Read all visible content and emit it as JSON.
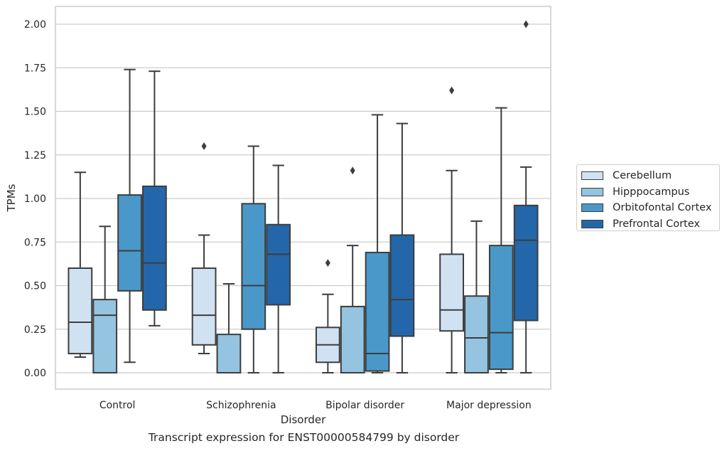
{
  "chart_data": {
    "type": "box",
    "caption": "Transcript expression for ENST00000584799 by disorder",
    "xlabel": "Disorder",
    "ylabel": "TPMs",
    "categories": [
      "Control",
      "Schizophrenia",
      "Bipolar disorder",
      "Major depression"
    ],
    "ylim": [
      -0.1,
      2.1
    ],
    "yticks": [
      "0.00",
      "0.25",
      "0.50",
      "0.75",
      "1.00",
      "1.25",
      "1.50",
      "1.75",
      "2.00"
    ],
    "grid": "horizontal",
    "legend_position": "right",
    "series": [
      {
        "name": "Cerebellum",
        "color": "#d0e1f2",
        "boxes": [
          {
            "whisker_low": 0.09,
            "q1": 0.11,
            "median": 0.29,
            "q3": 0.6,
            "whisker_high": 1.15,
            "outliers": []
          },
          {
            "whisker_low": 0.11,
            "q1": 0.16,
            "median": 0.33,
            "q3": 0.6,
            "whisker_high": 0.79,
            "outliers": [
              1.3
            ]
          },
          {
            "whisker_low": 0.0,
            "q1": 0.06,
            "median": 0.16,
            "q3": 0.26,
            "whisker_high": 0.45,
            "outliers": [
              0.63
            ]
          },
          {
            "whisker_low": 0.0,
            "q1": 0.24,
            "median": 0.36,
            "q3": 0.68,
            "whisker_high": 1.16,
            "outliers": [
              1.62
            ]
          }
        ]
      },
      {
        "name": "Hipppocampus",
        "color": "#94c4df",
        "boxes": [
          {
            "whisker_low": 0.0,
            "q1": 0.0,
            "median": 0.33,
            "q3": 0.42,
            "whisker_high": 0.84,
            "outliers": []
          },
          {
            "whisker_low": 0.0,
            "q1": 0.0,
            "median": 0.0,
            "q3": 0.22,
            "whisker_high": 0.51,
            "outliers": []
          },
          {
            "whisker_low": 0.0,
            "q1": 0.0,
            "median": 0.0,
            "q3": 0.38,
            "whisker_high": 0.73,
            "outliers": [
              1.16
            ]
          },
          {
            "whisker_low": 0.0,
            "q1": 0.0,
            "median": 0.2,
            "q3": 0.44,
            "whisker_high": 0.87,
            "outliers": []
          }
        ]
      },
      {
        "name": "Orbitofontal Cortex",
        "color": "#4a98c9",
        "boxes": [
          {
            "whisker_low": 0.06,
            "q1": 0.47,
            "median": 0.7,
            "q3": 1.02,
            "whisker_high": 1.74,
            "outliers": []
          },
          {
            "whisker_low": 0.0,
            "q1": 0.25,
            "median": 0.5,
            "q3": 0.97,
            "whisker_high": 1.3,
            "outliers": []
          },
          {
            "whisker_low": 0.0,
            "q1": 0.01,
            "median": 0.11,
            "q3": 0.69,
            "whisker_high": 1.48,
            "outliers": []
          },
          {
            "whisker_low": 0.0,
            "q1": 0.02,
            "median": 0.23,
            "q3": 0.73,
            "whisker_high": 1.52,
            "outliers": []
          }
        ]
      },
      {
        "name": "Prefrontal Cortex",
        "color": "#2367aa",
        "boxes": [
          {
            "whisker_low": 0.27,
            "q1": 0.36,
            "median": 0.63,
            "q3": 1.07,
            "whisker_high": 1.73,
            "outliers": []
          },
          {
            "whisker_low": 0.0,
            "q1": 0.39,
            "median": 0.68,
            "q3": 0.85,
            "whisker_high": 1.19,
            "outliers": []
          },
          {
            "whisker_low": 0.0,
            "q1": 0.21,
            "median": 0.42,
            "q3": 0.79,
            "whisker_high": 1.43,
            "outliers": []
          },
          {
            "whisker_low": 0.0,
            "q1": 0.3,
            "median": 0.76,
            "q3": 0.96,
            "whisker_high": 1.18,
            "outliers": [
              2.0
            ]
          }
        ]
      }
    ]
  }
}
